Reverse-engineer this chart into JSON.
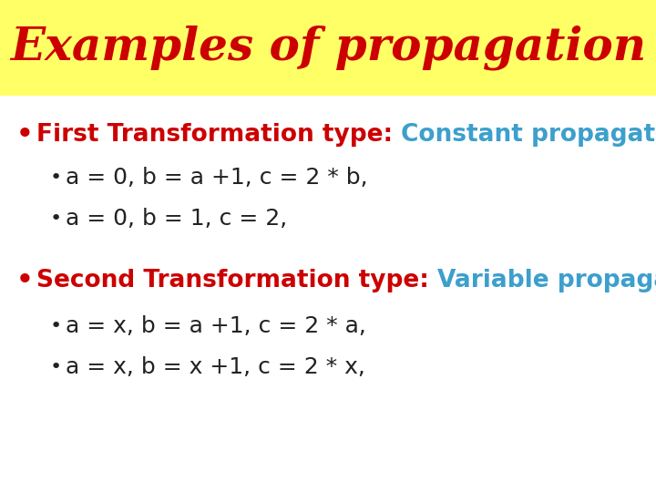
{
  "title": "Examples of propagation",
  "title_color": "#cc0000",
  "title_bg_color": "#ffff66",
  "title_fontsize": 36,
  "body_bg_color": "#ffffff",
  "bullet1_red": "First Transformation type: ",
  "bullet1_blue": "Constant propagation:",
  "bullet1_red_color": "#cc0000",
  "bullet1_blue_color": "#3d9fcc",
  "sub1a": "a = 0, b = a +1, c = 2 * b,",
  "sub1b": "a = 0, b = 1, c = 2,",
  "bullet2_red": "Second Transformation type: ",
  "bullet2_blue": "Variable propagation:",
  "sub2a": "a = x, b = a +1, c = 2 * a,",
  "sub2b": "a = x, b = x +1, c = 2 * x,",
  "sub_color": "#222222",
  "red_color": "#cc0000",
  "blue_color": "#3d9fcc",
  "fig_width": 7.2,
  "fig_height": 5.4,
  "dpi": 100
}
